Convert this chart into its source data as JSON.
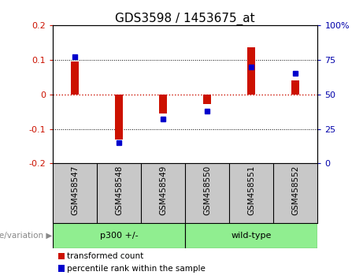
{
  "title": "GDS3598 / 1453675_at",
  "samples": [
    "GSM458547",
    "GSM458548",
    "GSM458549",
    "GSM458550",
    "GSM458551",
    "GSM458552"
  ],
  "red_bars": [
    0.095,
    -0.13,
    -0.055,
    -0.028,
    0.135,
    0.04
  ],
  "blue_squares_pct": [
    77,
    15,
    32,
    38,
    70,
    65
  ],
  "ylim": [
    -0.2,
    0.2
  ],
  "yticks_left": [
    -0.2,
    -0.1,
    0.0,
    0.1,
    0.2
  ],
  "yticks_right": [
    0,
    25,
    50,
    75,
    100
  ],
  "bar_color": "#CC1100",
  "square_color": "#0000CC",
  "zero_line_color": "#CC1100",
  "grid_color": "black",
  "bg_color": "#FFFFFF",
  "plot_bg": "#FFFFFF",
  "tick_label_color_left": "#CC1100",
  "tick_label_color_right": "#0000AA",
  "legend_red": "transformed count",
  "legend_blue": "percentile rank within the sample",
  "xlabel_bg": "#C8C8C8",
  "group_label_bg": "#90EE90",
  "title_fontsize": 11,
  "axis_fontsize": 8,
  "label_fontsize": 7.5,
  "bar_width": 0.18,
  "square_size": 4
}
